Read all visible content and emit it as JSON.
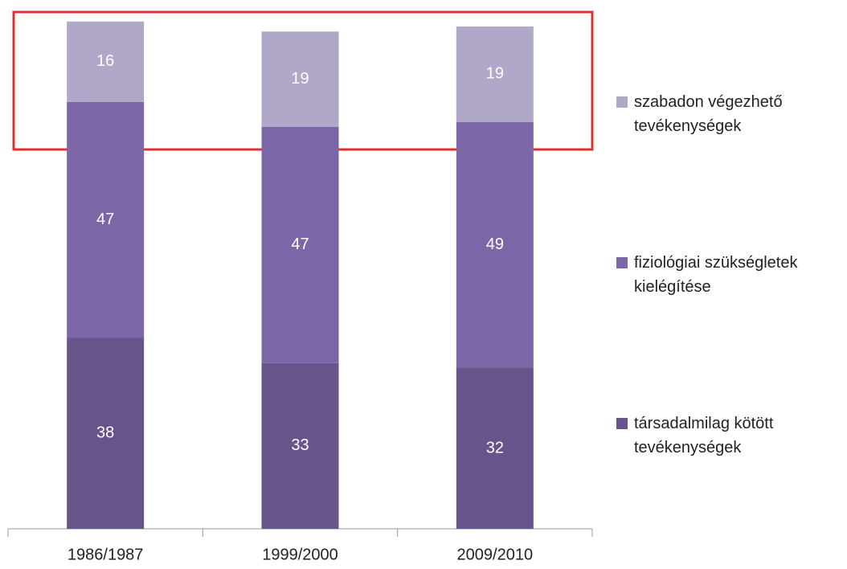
{
  "chart_data": {
    "type": "stacked_bar",
    "categories": [
      "1986/1987",
      "1999/2000",
      "2009/2010"
    ],
    "series": [
      {
        "name": "társadalmilag kötött tevékenységek",
        "color": "#67548a",
        "values": [
          38,
          33,
          32
        ]
      },
      {
        "name": "fiziológiai szükségletek kielégítése",
        "color": "#7b66a8",
        "values": [
          47,
          47,
          49
        ]
      },
      {
        "name": "szabadon végezhető tevékenységek",
        "color": "#b1a8c9",
        "values": [
          16,
          19,
          19
        ]
      }
    ],
    "ylim": [
      0,
      100
    ],
    "legend": "right"
  }
}
